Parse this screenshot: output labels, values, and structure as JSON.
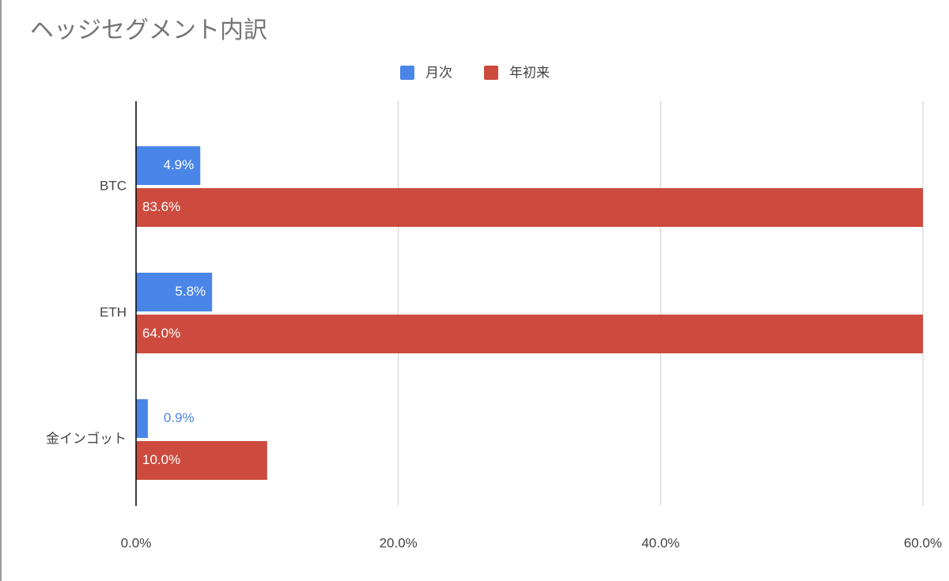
{
  "chart_data": {
    "type": "bar",
    "orientation": "horizontal",
    "title": "ヘッジセグメント内訳",
    "categories": [
      "BTC",
      "ETH",
      "金インゴット"
    ],
    "series": [
      {
        "name": "月次",
        "color": "#4a86e8",
        "values": [
          4.9,
          5.8,
          0.9
        ],
        "value_labels": [
          "4.9%",
          "5.8%",
          "0.9%"
        ]
      },
      {
        "name": "年初来",
        "color": "#cc4b3e",
        "values": [
          83.6,
          64.0,
          10.0
        ],
        "value_labels": [
          "83.6%",
          "64.0%",
          "10.0%"
        ]
      }
    ],
    "xlim": [
      0,
      60
    ],
    "xticks": [
      {
        "value": 0,
        "label": "0.0%"
      },
      {
        "value": 20,
        "label": "20.0%"
      },
      {
        "value": 40,
        "label": "40.0%"
      },
      {
        "value": 60,
        "label": "60.0%"
      }
    ],
    "grid": true,
    "legend": "top"
  }
}
